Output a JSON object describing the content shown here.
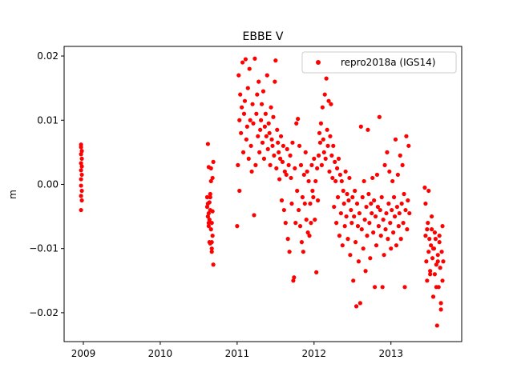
{
  "chart_data": {
    "type": "scatter",
    "title": "EBBE V",
    "xlabel": "",
    "ylabel": "m",
    "xlim": [
      2008.75,
      2013.92
    ],
    "ylim": [
      -0.0245,
      0.0215
    ],
    "xticks": [
      2009,
      2010,
      2011,
      2012,
      2013
    ],
    "xtick_labels": [
      "2009",
      "2010",
      "2011",
      "2012",
      "2013"
    ],
    "yticks": [
      0.02,
      0.01,
      0.0,
      -0.01,
      -0.02
    ],
    "ytick_labels": [
      "0.02",
      "0.01",
      "0.00",
      "−0.01",
      "−0.02"
    ],
    "grid": false,
    "legend_position": "top-right",
    "series": [
      {
        "name": "repro2018a (IGS14)",
        "color": "#ff0000",
        "marker": "circle",
        "x": [
          2008.97,
          2008.97,
          2008.98,
          2008.97,
          2008.98,
          2008.97,
          2008.98,
          2008.97,
          2008.98,
          2008.97,
          2008.97,
          2008.98,
          2008.97,
          2008.98,
          2008.97,
          2010.61,
          2010.61,
          2010.62,
          2010.62,
          2010.63,
          2010.63,
          2010.64,
          2010.64,
          2010.65,
          2010.65,
          2010.66,
          2010.66,
          2010.67,
          2010.67,
          2010.68,
          2010.68,
          2010.69,
          2010.69,
          2010.62,
          2010.63,
          2010.64,
          2010.65,
          2010.66,
          2010.67,
          2010.68,
          2010.63,
          2010.65,
          2010.67,
          2011.0,
          2011.01,
          2011.02,
          2011.03,
          2011.03,
          2011.04,
          2011.05,
          2011.06,
          2011.07,
          2011.08,
          2011.09,
          2011.1,
          2011.11,
          2011.12,
          2011.13,
          2011.14,
          2011.15,
          2011.16,
          2011.17,
          2011.18,
          2011.19,
          2011.2,
          2011.21,
          2011.22,
          2011.23,
          2011.24,
          2011.25,
          2011.26,
          2011.27,
          2011.28,
          2011.29,
          2011.3,
          2011.31,
          2011.32,
          2011.33,
          2011.34,
          2011.35,
          2011.36,
          2011.37,
          2011.38,
          2011.39,
          2011.4,
          2011.41,
          2011.42,
          2011.43,
          2011.44,
          2011.45,
          2011.46,
          2011.47,
          2011.48,
          2011.49,
          2011.5,
          2011.51,
          2011.52,
          2011.53,
          2011.54,
          2011.55,
          2011.56,
          2011.57,
          2011.58,
          2011.59,
          2011.6,
          2011.61,
          2011.62,
          2011.63,
          2011.64,
          2011.65,
          2011.66,
          2011.67,
          2011.68,
          2011.69,
          2011.7,
          2011.71,
          2011.72,
          2011.73,
          2011.74,
          2011.75,
          2011.76,
          2011.77,
          2011.78,
          2011.79,
          2011.8,
          2011.81,
          2011.82,
          2011.83,
          2011.84,
          2011.85,
          2011.86,
          2011.87,
          2011.88,
          2011.89,
          2011.9,
          2011.91,
          2011.92,
          2011.93,
          2011.94,
          2011.95,
          2011.96,
          2011.97,
          2011.98,
          2011.99,
          2012.0,
          2012.01,
          2012.02,
          2012.03,
          2012.04,
          2012.05,
          2012.06,
          2012.07,
          2012.08,
          2012.09,
          2012.1,
          2012.11,
          2012.12,
          2012.13,
          2012.14,
          2012.15,
          2012.16,
          2012.17,
          2012.18,
          2012.19,
          2012.2,
          2012.21,
          2012.22,
          2012.23,
          2012.24,
          2012.25,
          2012.26,
          2012.27,
          2012.28,
          2012.29,
          2012.3,
          2012.31,
          2012.32,
          2012.33,
          2012.34,
          2012.35,
          2012.36,
          2012.37,
          2012.38,
          2012.39,
          2012.4,
          2012.41,
          2012.42,
          2012.43,
          2012.44,
          2012.45,
          2012.46,
          2012.47,
          2012.48,
          2012.49,
          2012.5,
          2012.51,
          2012.52,
          2012.53,
          2012.54,
          2012.55,
          2012.56,
          2012.57,
          2012.58,
          2012.59,
          2012.6,
          2012.61,
          2012.62,
          2012.63,
          2012.64,
          2012.65,
          2012.66,
          2012.67,
          2012.68,
          2012.69,
          2012.7,
          2012.71,
          2012.72,
          2012.73,
          2012.74,
          2012.75,
          2012.76,
          2012.77,
          2012.78,
          2012.79,
          2012.8,
          2012.81,
          2012.82,
          2012.83,
          2012.84,
          2012.85,
          2012.86,
          2012.87,
          2012.88,
          2012.89,
          2012.9,
          2012.91,
          2012.92,
          2012.93,
          2012.94,
          2012.95,
          2012.96,
          2012.97,
          2012.98,
          2012.99,
          2013.0,
          2013.01,
          2013.02,
          2013.03,
          2013.04,
          2013.05,
          2013.06,
          2013.07,
          2013.08,
          2013.09,
          2013.1,
          2013.11,
          2013.12,
          2013.13,
          2013.14,
          2013.15,
          2013.16,
          2013.17,
          2013.18,
          2013.19,
          2013.2,
          2013.21,
          2013.22,
          2013.23,
          2013.24,
          2013.44,
          2013.45,
          2013.46,
          2013.47,
          2013.48,
          2013.49,
          2013.5,
          2013.51,
          2013.52,
          2013.53,
          2013.54,
          2013.55,
          2013.56,
          2013.57,
          2013.58,
          2013.59,
          2013.6,
          2013.61,
          2013.62,
          2013.63,
          2013.64,
          2013.65,
          2013.66,
          2013.67,
          2013.68,
          2013.45,
          2013.47,
          2013.49,
          2013.51,
          2013.53,
          2013.55,
          2013.57,
          2013.59,
          2013.61,
          2013.63,
          2013.65,
          2013.67
        ],
        "y": [
          0.0062,
          0.0058,
          0.0052,
          0.0047,
          0.004,
          0.0033,
          0.0028,
          0.0022,
          0.0015,
          0.0008,
          -0.0002,
          -0.001,
          -0.0018,
          -0.0025,
          -0.004,
          -0.002,
          -0.0035,
          -0.005,
          0.0063,
          -0.0045,
          -0.006,
          -0.0028,
          -0.009,
          -0.004,
          -0.0015,
          -0.007,
          0.0025,
          -0.01,
          -0.006,
          0.001,
          -0.008,
          0.0035,
          -0.0125,
          -0.003,
          0.0027,
          -0.0055,
          -0.0092,
          0.0005,
          -0.0105,
          -0.0042,
          -0.0065,
          -0.002,
          -0.009,
          -0.0065,
          0.003,
          0.017,
          0.01,
          -0.001,
          0.014,
          0.008,
          0.012,
          0.019,
          0.005,
          0.011,
          0.013,
          0.0195,
          0.007,
          0.009,
          0.015,
          0.004,
          0.018,
          0.01,
          0.006,
          0.002,
          0.0125,
          0.0095,
          -0.0048,
          0.0196,
          0.003,
          0.011,
          0.014,
          0.0075,
          0.016,
          0.005,
          0.0085,
          0.01,
          0.0125,
          0.0065,
          0.0145,
          0.004,
          0.009,
          0.011,
          0.0075,
          0.017,
          0.0055,
          0.0095,
          0.008,
          0.003,
          0.012,
          0.007,
          0.006,
          0.0105,
          0.0045,
          0.016,
          0.0193,
          0.0025,
          0.0085,
          0.0065,
          0.005,
          0.0008,
          0.004,
          0.0075,
          -0.0025,
          0.0035,
          0.006,
          -0.004,
          0.002,
          -0.006,
          0.0015,
          0.0055,
          -0.0085,
          0.003,
          -0.0105,
          0.0045,
          0.001,
          -0.003,
          0.0065,
          -0.015,
          -0.0145,
          0.0025,
          -0.006,
          0.0095,
          -0.001,
          0.0102,
          -0.004,
          0.006,
          -0.0065,
          0.003,
          -0.009,
          -0.002,
          -0.0105,
          0.0015,
          -0.003,
          0.005,
          -0.0055,
          0.002,
          -0.0075,
          0.0005,
          -0.008,
          -0.003,
          -0.006,
          0.003,
          -0.001,
          -0.002,
          0.004,
          -0.0055,
          0.0005,
          -0.0137,
          0.0025,
          -0.0025,
          0.0045,
          0.008,
          0.0065,
          0.0095,
          0.003,
          0.012,
          0.007,
          0.005,
          0.014,
          0.004,
          0.0165,
          0.0085,
          0.006,
          0.013,
          0.002,
          0.0075,
          0.0125,
          0.0045,
          0.001,
          0.006,
          -0.0035,
          0.0035,
          0.0005,
          -0.006,
          0.0025,
          -0.002,
          0.004,
          -0.008,
          0.0015,
          -0.0045,
          0.0005,
          -0.0095,
          -0.001,
          -0.003,
          -0.0065,
          0.002,
          -0.005,
          -0.0015,
          -0.0085,
          -0.0025,
          0.001,
          -0.011,
          -0.004,
          -0.006,
          -0.002,
          -0.015,
          -0.005,
          -0.001,
          -0.009,
          -0.019,
          -0.003,
          -0.0065,
          -0.012,
          -0.0045,
          -0.0185,
          0.009,
          -0.007,
          -0.002,
          -0.01,
          0.0005,
          -0.0055,
          -0.0135,
          -0.0035,
          -0.008,
          0.0085,
          -0.0015,
          -0.006,
          -0.0115,
          -0.003,
          -0.0045,
          0.001,
          -0.0075,
          -0.0025,
          -0.016,
          -0.005,
          -0.0095,
          0.0015,
          -0.0035,
          -0.0065,
          0.0105,
          -0.004,
          -0.008,
          -0.002,
          -0.016,
          -0.0055,
          -0.011,
          0.003,
          -0.007,
          -0.0045,
          0.005,
          -0.0085,
          -0.003,
          0.002,
          -0.006,
          -0.01,
          -0.004,
          0.0005,
          -0.0075,
          -0.002,
          -0.005,
          0.007,
          -0.0095,
          -0.0035,
          0.0015,
          -0.0065,
          -0.0045,
          0.0045,
          -0.0085,
          -0.003,
          0.003,
          -0.006,
          -0.0015,
          -0.016,
          -0.004,
          0.0075,
          -0.007,
          -0.0025,
          0.006,
          -0.0045,
          -0.0005,
          -0.008,
          -0.012,
          -0.015,
          -0.006,
          -0.0105,
          -0.0085,
          -0.0135,
          -0.0095,
          -0.007,
          -0.0115,
          -0.0175,
          -0.01,
          -0.014,
          -0.0085,
          -0.0125,
          -0.022,
          -0.011,
          -0.016,
          -0.009,
          -0.013,
          -0.0195,
          -0.0105,
          -0.015,
          -0.012,
          -0.003,
          -0.007,
          -0.001,
          -0.014,
          -0.005,
          -0.01,
          -0.0075,
          -0.016,
          -0.012,
          -0.008,
          -0.0185,
          -0.0065
        ]
      }
    ]
  }
}
